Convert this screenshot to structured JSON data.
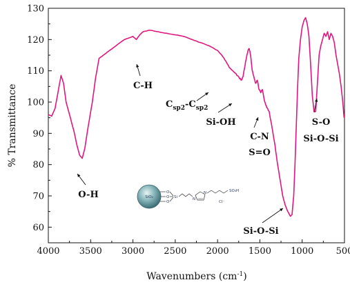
{
  "chart_data": {
    "type": "line",
    "xlabel": "Wavenumbers (cm",
    "xlabel_sup": "-1",
    "xlabel_close": ")",
    "ylabel": "% Transmittance",
    "xlim": [
      4000,
      500
    ],
    "ylim": [
      55,
      130
    ],
    "x_ticks": [
      "4000",
      "3500",
      "3000",
      "2500",
      "2000",
      "1500",
      "1000",
      "500"
    ],
    "y_ticks": [
      "60",
      "70",
      "80",
      "90",
      "100",
      "110",
      "120",
      "130"
    ],
    "grid": false,
    "legend": "none",
    "line_color": "#e0157f",
    "series": [
      {
        "x": [
          4000,
          3960,
          3920,
          3880,
          3850,
          3820,
          3790,
          3750,
          3700,
          3660,
          3630,
          3600,
          3570,
          3530,
          3480,
          3440,
          3400,
          3350,
          3250,
          3100,
          3000,
          2960,
          2920,
          2880,
          2800,
          2700,
          2600,
          2500,
          2400,
          2300,
          2200,
          2100,
          2000,
          1950,
          1900,
          1860,
          1820,
          1780,
          1740,
          1720,
          1700,
          1680,
          1660,
          1640,
          1625,
          1610,
          1590,
          1570,
          1550,
          1530,
          1510,
          1490,
          1470,
          1450,
          1430,
          1410,
          1390,
          1370,
          1350,
          1320,
          1290,
          1260,
          1230,
          1200,
          1170,
          1140,
          1120,
          1100,
          1085,
          1070,
          1055,
          1040,
          1020,
          1000,
          980,
          960,
          940,
          920,
          900,
          880,
          860,
          840,
          820,
          800,
          780,
          760,
          740,
          720,
          700,
          680,
          660,
          640,
          620,
          600,
          580,
          560,
          540,
          520,
          505
        ],
        "y": [
          96,
          95.5,
          98,
          104,
          108.5,
          106,
          100,
          96,
          91,
          86,
          83,
          82,
          85,
          92,
          100,
          108,
          114,
          115,
          117,
          120,
          121,
          120,
          121.5,
          122.5,
          123,
          122.5,
          122,
          121.5,
          121,
          120,
          119,
          118,
          116.5,
          115,
          113,
          111,
          110,
          109,
          107.5,
          107,
          108,
          111,
          114,
          116.5,
          117,
          115,
          110,
          108,
          106,
          107,
          104,
          103,
          104,
          101,
          99,
          98,
          97,
          94,
          91,
          86,
          80,
          75,
          70,
          67,
          65,
          63.5,
          64,
          70,
          80,
          92,
          104,
          114,
          120,
          124,
          126,
          127,
          125,
          121,
          112,
          102,
          97,
          97,
          106,
          115,
          118,
          120,
          122,
          121,
          122.5,
          120,
          122,
          121,
          119,
          115,
          112,
          109,
          105,
          100,
          95
        ]
      }
    ],
    "annotations": [
      {
        "label": "O-H",
        "x": 3640,
        "y": 84
      },
      {
        "label": "C-H",
        "x": 2940,
        "y": 119
      },
      {
        "label_base": "C",
        "sub1": "sp2",
        "dash": "-C",
        "sub2": "sp2",
        "x": 1700,
        "y": 108
      },
      {
        "label": "Si-OH",
        "x": 1540,
        "y": 105
      },
      {
        "label": "C-N",
        "x": 1430,
        "y": 103
      },
      {
        "label": "S=O",
        "x": 1430,
        "y": 0
      },
      {
        "label": "S-O",
        "x": 790,
        "y": 112
      },
      {
        "label": "Si-O-Si",
        "x": 790,
        "y": 0
      },
      {
        "label": "Si-O-Si",
        "x": 1100,
        "y": 64
      }
    ]
  },
  "molecule": {
    "core_label": "SiO₂",
    "si_label": "Si",
    "o_label": "O",
    "n_label": "N",
    "sulfonic_label": "SO₃H",
    "anion_label": "Cl⁻"
  }
}
